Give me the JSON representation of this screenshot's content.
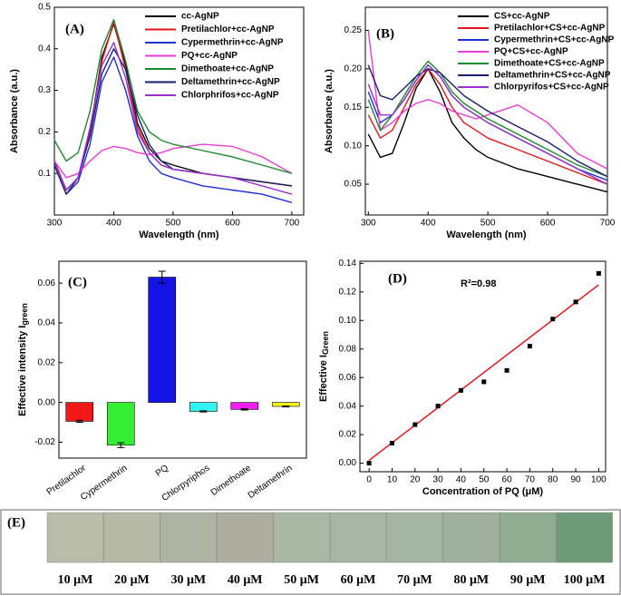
{
  "chart_data": [
    {
      "type": "line",
      "panel_label": "(A)",
      "xlabel": "Wavelength (nm)",
      "ylabel": "Absorbance (a.u.)",
      "xlim": [
        300,
        720
      ],
      "xticks": [
        300,
        400,
        500,
        600,
        700
      ],
      "ylim": [
        0,
        0.5
      ],
      "yticks": [
        0.1,
        0.2,
        0.3,
        0.4,
        0.5
      ],
      "legend": "upper right",
      "x": [
        300,
        320,
        340,
        360,
        380,
        400,
        420,
        440,
        460,
        480,
        500,
        550,
        600,
        650,
        700
      ],
      "series": [
        {
          "name": "cc-AgNP",
          "color": "#000000",
          "values": [
            0.13,
            0.06,
            0.09,
            0.2,
            0.38,
            0.46,
            0.36,
            0.22,
            0.16,
            0.13,
            0.12,
            0.1,
            0.09,
            0.08,
            0.07
          ]
        },
        {
          "name": "Pretilachlor+cc-AgNP",
          "color": "#e8141b",
          "values": [
            0.13,
            0.06,
            0.09,
            0.2,
            0.37,
            0.465,
            0.35,
            0.21,
            0.15,
            0.12,
            0.11,
            0.1,
            0.09,
            0.08,
            0.07
          ]
        },
        {
          "name": "Cypermethrin+cc-AgNP",
          "color": "#1c2fd6",
          "values": [
            0.12,
            0.05,
            0.08,
            0.17,
            0.32,
            0.38,
            0.3,
            0.19,
            0.13,
            0.1,
            0.09,
            0.07,
            0.06,
            0.05,
            0.03
          ]
        },
        {
          "name": "PQ+cc-AgNP",
          "color": "#ee3ad6",
          "values": [
            0.13,
            0.09,
            0.1,
            0.13,
            0.155,
            0.165,
            0.16,
            0.15,
            0.145,
            0.15,
            0.16,
            0.17,
            0.165,
            0.14,
            0.1
          ]
        },
        {
          "name": "Dimethoate+cc-AgNP",
          "color": "#1b8a2e",
          "values": [
            0.18,
            0.13,
            0.15,
            0.25,
            0.4,
            0.47,
            0.37,
            0.25,
            0.2,
            0.18,
            0.17,
            0.155,
            0.14,
            0.12,
            0.1
          ]
        },
        {
          "name": "Deltamethrin+cc-AgNP",
          "color": "#1a1f6e",
          "values": [
            0.12,
            0.05,
            0.09,
            0.19,
            0.34,
            0.4,
            0.35,
            0.24,
            0.17,
            0.13,
            0.11,
            0.1,
            0.09,
            0.08,
            0.07
          ]
        },
        {
          "name": "Chlorphrifos+cc-AgNP",
          "color": "#9b2fd0",
          "values": [
            0.13,
            0.06,
            0.09,
            0.21,
            0.36,
            0.415,
            0.33,
            0.2,
            0.15,
            0.12,
            0.11,
            0.1,
            0.09,
            0.07,
            0.05
          ]
        }
      ]
    },
    {
      "type": "line",
      "panel_label": "(B)",
      "xlabel": "Wavelength (nm)",
      "ylabel": "Absorbance (a.u.)",
      "xlim": [
        295,
        700
      ],
      "xticks": [
        300,
        400,
        500,
        600,
        700
      ],
      "ylim": [
        0.01,
        0.28
      ],
      "yticks": [
        {
          "value": 0.05,
          "label": "0.05"
        },
        {
          "value": 0.1,
          "label": "0.10"
        },
        {
          "value": 0.15,
          "label": "0.15"
        },
        {
          "value": 0.2,
          "label": "0.20"
        },
        {
          "value": 0.25,
          "label": "0.25"
        }
      ],
      "legend": "upper right",
      "x": [
        300,
        320,
        340,
        360,
        380,
        400,
        420,
        440,
        460,
        480,
        500,
        550,
        600,
        650,
        700
      ],
      "series": [
        {
          "name": "CS+cc-AgNP",
          "color": "#000000",
          "values": [
            0.115,
            0.085,
            0.09,
            0.13,
            0.175,
            0.2,
            0.17,
            0.13,
            0.11,
            0.095,
            0.085,
            0.07,
            0.06,
            0.05,
            0.04
          ]
        },
        {
          "name": "Pretilachlor+CS+cc-AgNP",
          "color": "#e8141b",
          "values": [
            0.14,
            0.11,
            0.12,
            0.15,
            0.18,
            0.2,
            0.18,
            0.15,
            0.13,
            0.12,
            0.11,
            0.095,
            0.08,
            0.065,
            0.05
          ]
        },
        {
          "name": "Cypermethrin+CS+cc-AgNP",
          "color": "#1c2fd6",
          "values": [
            0.17,
            0.13,
            0.14,
            0.16,
            0.185,
            0.205,
            0.19,
            0.165,
            0.15,
            0.14,
            0.13,
            0.11,
            0.09,
            0.07,
            0.055
          ]
        },
        {
          "name": "PQ+CS+cc-AgNP",
          "color": "#ee3ad6",
          "values": [
            0.25,
            0.12,
            0.13,
            0.145,
            0.155,
            0.16,
            0.155,
            0.145,
            0.14,
            0.135,
            0.14,
            0.153,
            0.13,
            0.09,
            0.07
          ]
        },
        {
          "name": "Dimethoate+CS+cc-AgNP",
          "color": "#1b8a2e",
          "values": [
            0.16,
            0.12,
            0.14,
            0.165,
            0.19,
            0.21,
            0.195,
            0.17,
            0.155,
            0.145,
            0.135,
            0.115,
            0.095,
            0.075,
            0.06
          ]
        },
        {
          "name": "Deltamethrin+CS+cc-AgNP",
          "color": "#1a1f6e",
          "values": [
            0.205,
            0.165,
            0.16,
            0.175,
            0.19,
            0.2,
            0.195,
            0.18,
            0.165,
            0.155,
            0.145,
            0.125,
            0.105,
            0.08,
            0.06
          ]
        },
        {
          "name": "Chlorpyrifos+CS+cc-AgNP",
          "color": "#9b2fd0",
          "values": [
            0.18,
            0.14,
            0.14,
            0.16,
            0.185,
            0.205,
            0.19,
            0.165,
            0.15,
            0.14,
            0.13,
            0.11,
            0.09,
            0.07,
            0.05
          ]
        }
      ]
    },
    {
      "type": "bar",
      "panel_label": "(C)",
      "ylabel": "Effective intensity I",
      "ylabel_sub": "green",
      "ylim": [
        -0.028,
        0.071
      ],
      "yticks": [
        {
          "value": -0.02,
          "label": "-0.02"
        },
        {
          "value": 0,
          "label": "0.00"
        },
        {
          "value": 0.02,
          "label": "0.02"
        },
        {
          "value": 0.04,
          "label": "0.04"
        },
        {
          "value": 0.06,
          "label": "0.06"
        }
      ],
      "categories": [
        "Pretilachlor",
        "Cypermethrin",
        "PQ",
        "Chlorpyriphos",
        "Dimethoate",
        "Deltamethrin"
      ],
      "values": [
        -0.0095,
        -0.0215,
        0.063,
        -0.0045,
        -0.0035,
        -0.002
      ],
      "errors": [
        0.0005,
        0.0012,
        0.003,
        0.0003,
        0.0003,
        0.0002
      ],
      "colors": [
        "#f21818",
        "#33ee33",
        "#1414e6",
        "#33f2f2",
        "#f21ef2",
        "#f6f618"
      ]
    },
    {
      "type": "scatter",
      "panel_label": "(D)",
      "annotation": "R²=0.98",
      "xlabel": "Concentration of PQ (μM)",
      "ylabel": "Effective I",
      "ylabel_sub": "Green",
      "xlim": [
        -4,
        103
      ],
      "xticks": [
        0,
        10,
        20,
        30,
        40,
        50,
        60,
        70,
        80,
        90,
        100
      ],
      "ylim": [
        -0.006,
        0.1415
      ],
      "yticks": [
        {
          "value": 0,
          "label": "0.00"
        },
        {
          "value": 0.02,
          "label": "0.02"
        },
        {
          "value": 0.04,
          "label": "0.04"
        },
        {
          "value": 0.06,
          "label": "0.06"
        },
        {
          "value": 0.08,
          "label": "0.08"
        },
        {
          "value": 0.1,
          "label": "0.10"
        },
        {
          "value": 0.12,
          "label": "0.12"
        },
        {
          "value": 0.14,
          "label": "0.14"
        }
      ],
      "x": [
        0,
        10,
        20,
        30,
        40,
        50,
        60,
        70,
        80,
        90,
        100
      ],
      "values": [
        0.0,
        0.014,
        0.027,
        0.04,
        0.051,
        0.057,
        0.065,
        0.082,
        0.101,
        0.113,
        0.133
      ],
      "color": "#000000",
      "fit": {
        "x": [
          0,
          100
        ],
        "values": [
          0.002,
          0.125
        ],
        "color": "#e8141b"
      }
    }
  ],
  "panel_e": {
    "label": "(E)",
    "tiles": [
      {
        "label": "10 μM",
        "color": "#b8bca8"
      },
      {
        "label": "20 μM",
        "color": "#b5b9a6"
      },
      {
        "label": "30 μM",
        "color": "#abb5a2"
      },
      {
        "label": "40 μM",
        "color": "#adaea0"
      },
      {
        "label": "50 μM",
        "color": "#a9b7a5"
      },
      {
        "label": "60 μM",
        "color": "#a6b5a4"
      },
      {
        "label": "70 μM",
        "color": "#a3b5a3"
      },
      {
        "label": "80 μM",
        "color": "#9fb09e"
      },
      {
        "label": "90 μM",
        "color": "#8fab90"
      },
      {
        "label": "100 μM",
        "color": "#6f9a78"
      }
    ]
  }
}
